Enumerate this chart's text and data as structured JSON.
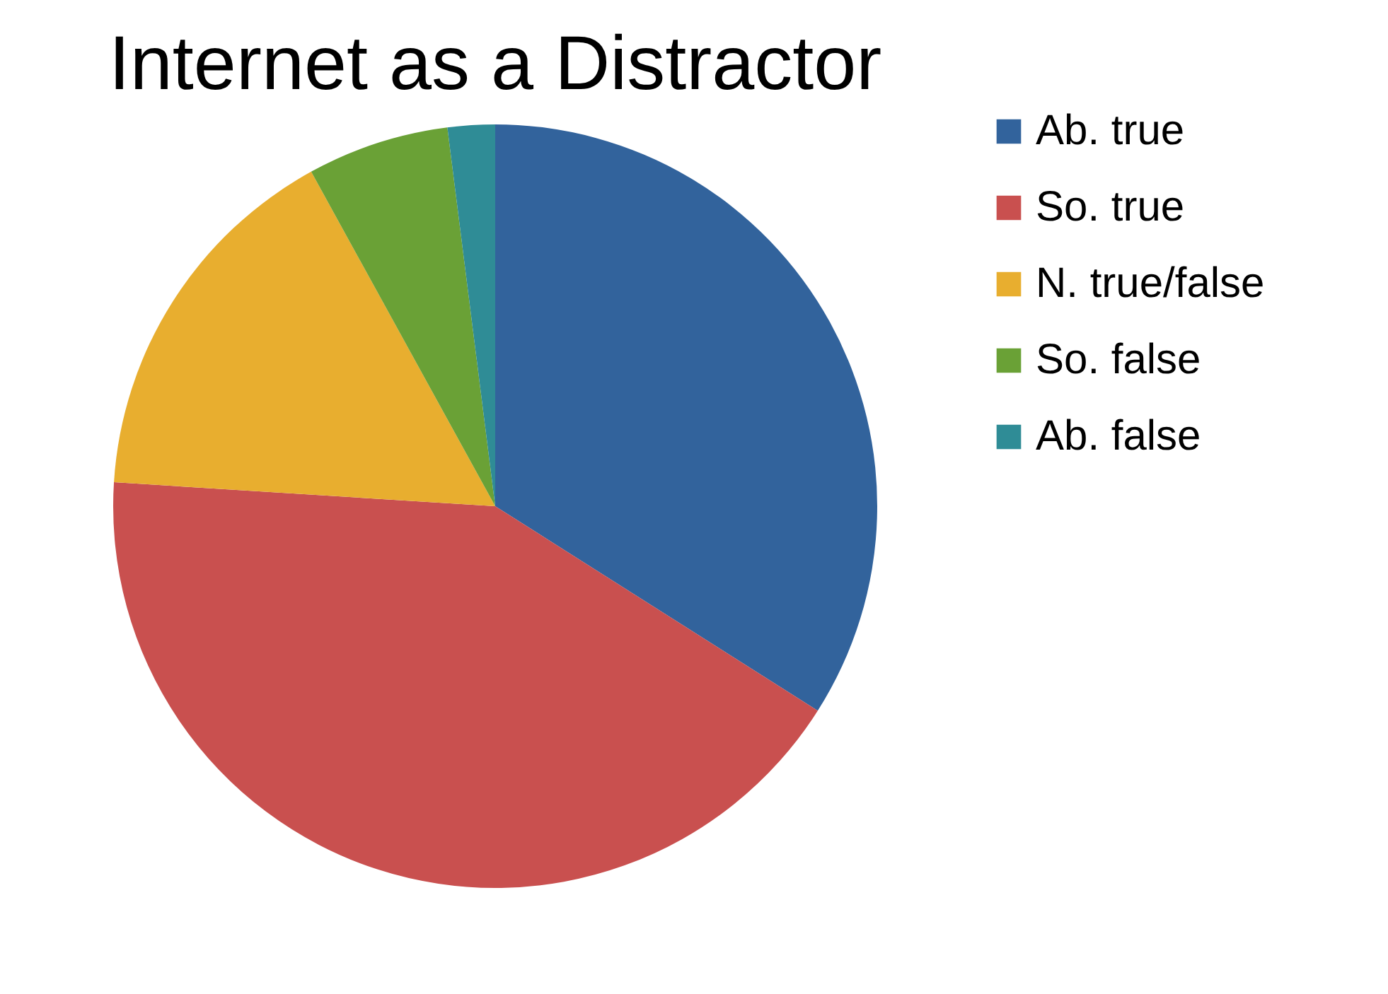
{
  "chart_data": {
    "type": "pie",
    "title": "Internet as a Distractor",
    "categories": [
      "Ab. true",
      "So. true",
      "N. true/false",
      "So. false",
      "Ab. false"
    ],
    "values": [
      34,
      42,
      16,
      6,
      2
    ],
    "colors": [
      "#32639c",
      "#c9504f",
      "#e8ae2f",
      "#6aa136",
      "#2f8c96"
    ],
    "legend": "right"
  }
}
